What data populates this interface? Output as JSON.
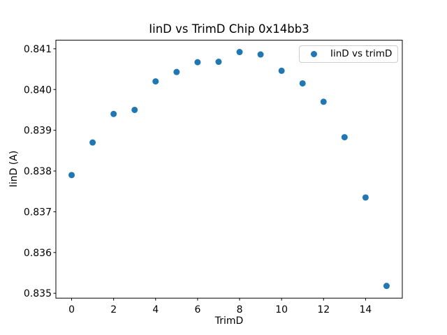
{
  "chart_data": {
    "type": "scatter",
    "title": "IinD vs TrimD Chip 0x14bb3",
    "xlabel": "TrimD",
    "ylabel": "IinD (A)",
    "legend": {
      "label": "IinD vs trimD",
      "position": "upper right"
    },
    "series": [
      {
        "name": "IinD vs trimD",
        "x": [
          0,
          1,
          2,
          3,
          4,
          5,
          6,
          7,
          8,
          9,
          10,
          11,
          12,
          13,
          14,
          15
        ],
        "y": [
          0.8379,
          0.8387,
          0.8394,
          0.8395,
          0.8402,
          0.84043,
          0.84067,
          0.84068,
          0.84092,
          0.84086,
          0.84046,
          0.84015,
          0.8397,
          0.83883,
          0.83735,
          0.83518
        ],
        "color": "#1f77b4"
      }
    ],
    "xlim": [
      -0.75,
      15.75
    ],
    "ylim": [
      0.83488,
      0.84121
    ],
    "xticks": [
      0,
      2,
      4,
      6,
      8,
      10,
      12,
      14
    ],
    "yticks": [
      0.835,
      0.836,
      0.837,
      0.838,
      0.839,
      0.84,
      0.841
    ],
    "grid": false,
    "background_color": "#ffffff",
    "axes_color": "#000000"
  }
}
